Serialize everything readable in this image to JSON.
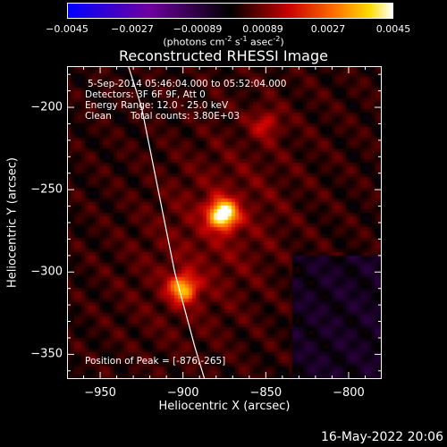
{
  "colorbar": {
    "ticks": [
      "-0.0045",
      "-0.0027",
      "-0.00089",
      "0.00089",
      "0.0027",
      "0.0045"
    ],
    "units_main": "(photons cm",
    "units_exp1": "-2",
    "units_mid1": " s",
    "units_exp2": "-1",
    "units_mid2": " asec",
    "units_exp3": "-2",
    "units_end": ")"
  },
  "title": "Reconstructed RHESSI Image",
  "info": {
    "time_range": "5-Sep-2014 05:46:04.000 to 05:52:04.000",
    "detectors": "Detectors: 3F 6F 9F, Att 0",
    "energy": "Energy Range: 12.0 - 25.0 keV",
    "algorithm": "Clean",
    "counts": "Total counts: 3.80E+03",
    "peak": "Position of Peak = [-876,-265]"
  },
  "footer": "16-May-2022 20:06",
  "chart_data": {
    "type": "heatmap",
    "title": "Reconstructed RHESSI Image",
    "xlabel": "Heliocentric X (arcsec)",
    "ylabel": "Heliocentric Y (arcsec)",
    "xlim": [
      -970,
      -780
    ],
    "ylim": [
      -365,
      -175
    ],
    "xticks": [
      -950,
      -900,
      -850,
      -800
    ],
    "xtick_labels": [
      "-950",
      "-900",
      "-850",
      "-800"
    ],
    "yticks": [
      -200,
      -250,
      -300,
      -350
    ],
    "ytick_labels": [
      "-200",
      "-250",
      "-300",
      "-350"
    ],
    "colorscale_range": [
      -0.0045,
      0.0045
    ],
    "sources": [
      {
        "x": -876,
        "y": -265,
        "peak": 0.0045
      },
      {
        "x": -900,
        "y": -310,
        "peak": 0.003
      },
      {
        "x": -850,
        "y": -210,
        "peak": 0.0012
      }
    ],
    "limb_curve": [
      [
        -933,
        -175
      ],
      [
        -925,
        -200
      ],
      [
        -915,
        -250
      ],
      [
        -905,
        -300
      ],
      [
        -893,
        -345
      ],
      [
        -887,
        -365
      ]
    ],
    "grid": false,
    "legend": "none"
  }
}
